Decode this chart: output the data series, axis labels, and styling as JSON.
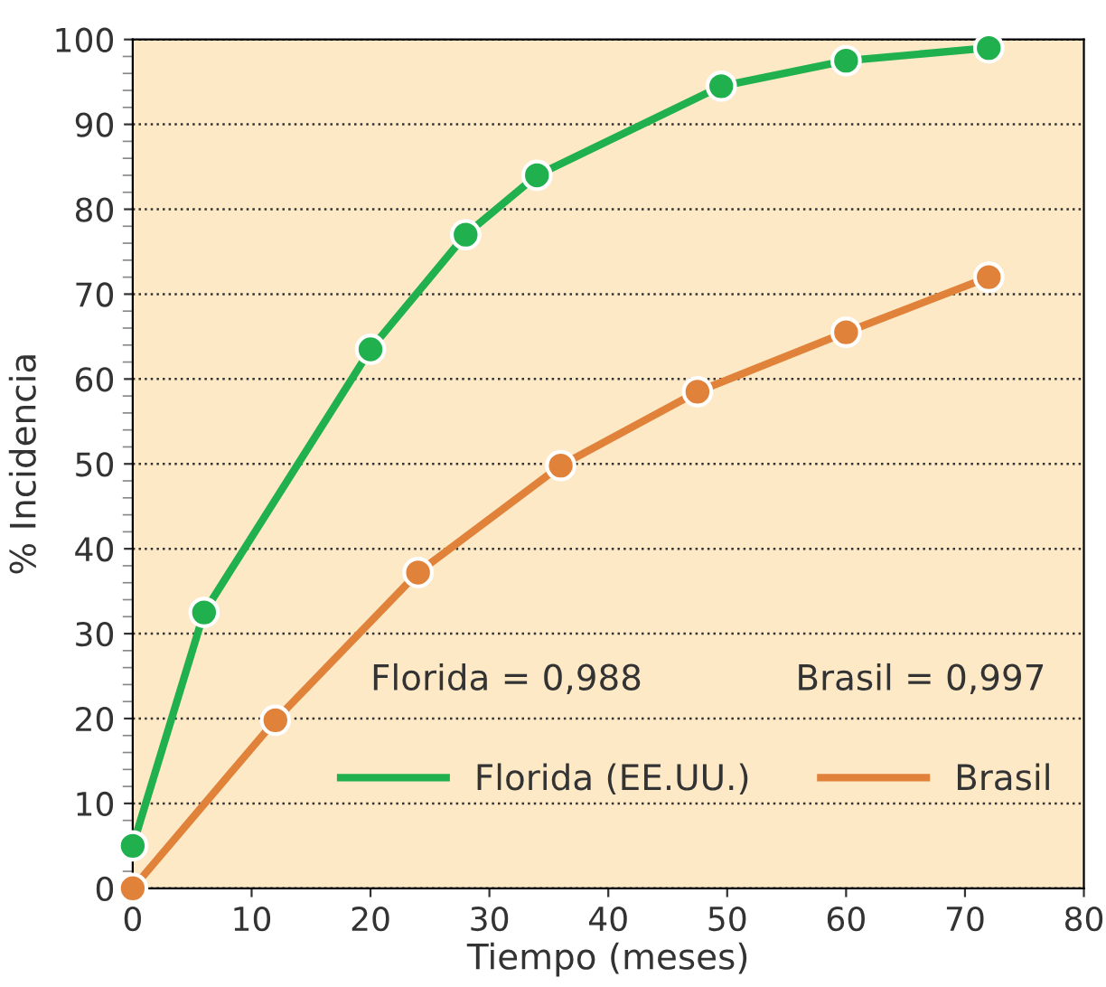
{
  "chart_data": {
    "type": "line",
    "xlabel": "Tiempo (meses)",
    "ylabel": "% Incidencia",
    "xlim": [
      0,
      80
    ],
    "xticks": [
      0,
      10,
      20,
      30,
      40,
      50,
      60,
      70,
      80
    ],
    "ylim": [
      0,
      100
    ],
    "yticks": [
      0,
      10,
      20,
      30,
      40,
      50,
      60,
      70,
      80,
      90,
      100
    ],
    "grid": "y",
    "legend": "bottom right",
    "marker": "circle",
    "line_style": "solid",
    "annotations": [
      "Florida = 0,988",
      "Brasil = 0,997"
    ],
    "series": [
      {
        "name": "Florida (EE.UU.)",
        "color": "#20b04e",
        "x": [
          0,
          6,
          20,
          28,
          34,
          49.5,
          60,
          72
        ],
        "values": [
          5,
          32.5,
          63.5,
          77,
          84,
          94.5,
          97.5,
          99
        ]
      },
      {
        "name": "Brasil",
        "color": "#e0823a",
        "x": [
          0,
          12,
          24,
          36,
          47.5,
          60,
          72
        ],
        "values": [
          0,
          19.8,
          37.2,
          49.8,
          58.5,
          65.5,
          72
        ]
      }
    ]
  }
}
